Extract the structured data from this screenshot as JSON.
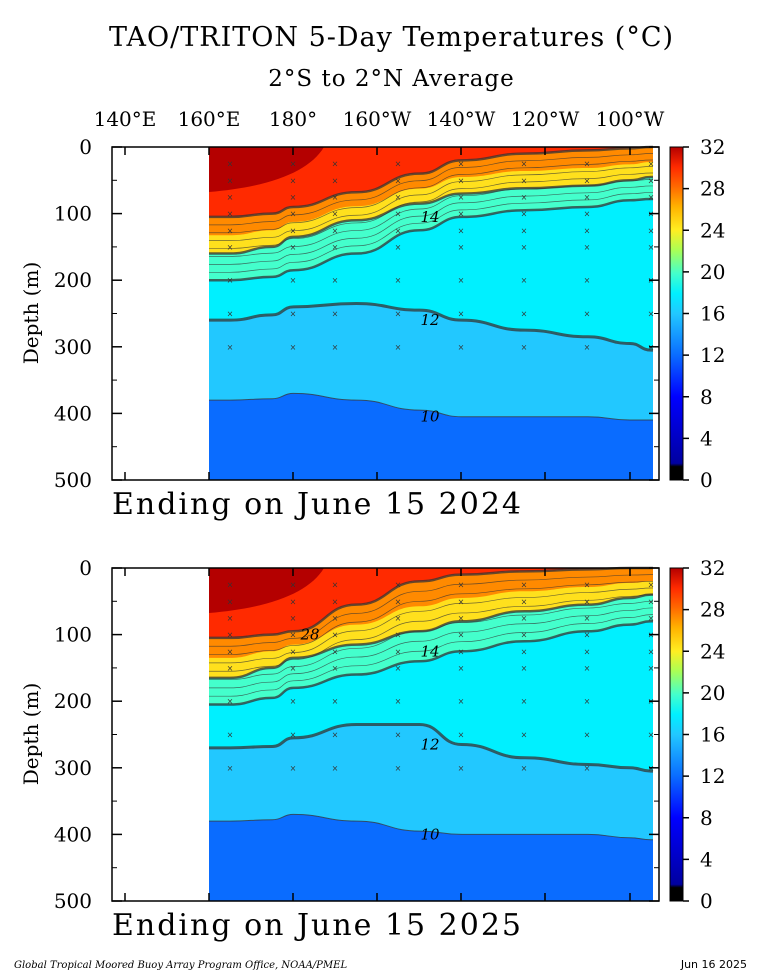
{
  "header": {
    "title": "TAO/TRITON 5-Day Temperatures (°C)",
    "subtitle": "2°S to 2°N Average",
    "lon_labels": [
      "140°E",
      "160°E",
      "180°",
      "160°W",
      "140°W",
      "120°W",
      "100°W"
    ]
  },
  "footer": {
    "credit": "Global Tropical Moored Buoy Array Program Office, NOAA/PMEL",
    "date": "Jun 16 2025"
  },
  "colors": {
    "red_dark": "#b40000",
    "red": "#ff2a00",
    "orange": "#ff8a00",
    "yellow": "#ffee22",
    "aqua": "#44ffcc",
    "cyan": "#00f0ff",
    "sky": "#22c8ff",
    "blue": "#0a6cff",
    "navy": "#0000a0",
    "black": "#000000"
  },
  "chart_data": [
    {
      "type": "heatmap",
      "ending_label": "Ending on June 15 2024",
      "ylabel": "Depth (m)",
      "xlabel": "",
      "ylim": [
        500,
        0
      ],
      "y_ticks": [
        "0",
        "100",
        "200",
        "300",
        "400",
        "500"
      ],
      "x_ticks": [
        "140°E",
        "160°E",
        "180°",
        "160°W",
        "140°W",
        "120°W",
        "100°W"
      ],
      "colorbar_ticks": [
        "0",
        "4",
        "8",
        "12",
        "16",
        "20",
        "24",
        "28",
        "32"
      ],
      "contour_labels": [
        "14",
        "12",
        "10"
      ],
      "isotherm_depths": {
        "lon": [
          "165°E",
          "175°E",
          "180°",
          "165°W",
          "150°W",
          "140°W",
          "125°W",
          "110°W",
          "100°W",
          "95°W"
        ],
        "t28": [
          105,
          100,
          90,
          68,
          40,
          20,
          10,
          5,
          2,
          0
        ],
        "t20": [
          160,
          150,
          135,
          110,
          85,
          70,
          62,
          58,
          50,
          45
        ],
        "t14": [
          200,
          195,
          185,
          160,
          125,
          105,
          95,
          90,
          80,
          78
        ],
        "t12": [
          260,
          252,
          240,
          235,
          245,
          260,
          275,
          285,
          295,
          305
        ],
        "t10": [
          380,
          378,
          370,
          380,
          395,
          405,
          405,
          405,
          410,
          410
        ]
      }
    },
    {
      "type": "heatmap",
      "ending_label": "Ending on June 15 2025",
      "ylabel": "Depth (m)",
      "xlabel": "",
      "ylim": [
        500,
        0
      ],
      "y_ticks": [
        "0",
        "100",
        "200",
        "300",
        "400",
        "500"
      ],
      "x_ticks": [
        "140°E",
        "160°E",
        "180°",
        "160°W",
        "140°W",
        "120°W",
        "100°W"
      ],
      "colorbar_ticks": [
        "0",
        "4",
        "8",
        "12",
        "16",
        "20",
        "24",
        "28",
        "32"
      ],
      "contour_labels": [
        "28",
        "14",
        "12",
        "10"
      ],
      "isotherm_depths": {
        "lon": [
          "165°E",
          "175°E",
          "180°",
          "165°W",
          "150°W",
          "140°W",
          "125°W",
          "110°W",
          "100°W",
          "95°W"
        ],
        "t28": [
          105,
          100,
          95,
          55,
          20,
          10,
          5,
          2,
          0,
          0
        ],
        "t20": [
          165,
          150,
          135,
          115,
          95,
          80,
          65,
          55,
          45,
          40
        ],
        "t14": [
          205,
          195,
          180,
          160,
          140,
          125,
          110,
          95,
          85,
          80
        ],
        "t12": [
          270,
          268,
          255,
          235,
          235,
          265,
          285,
          295,
          300,
          305
        ],
        "t10": [
          380,
          378,
          370,
          380,
          395,
          400,
          400,
          400,
          405,
          408
        ]
      }
    }
  ]
}
